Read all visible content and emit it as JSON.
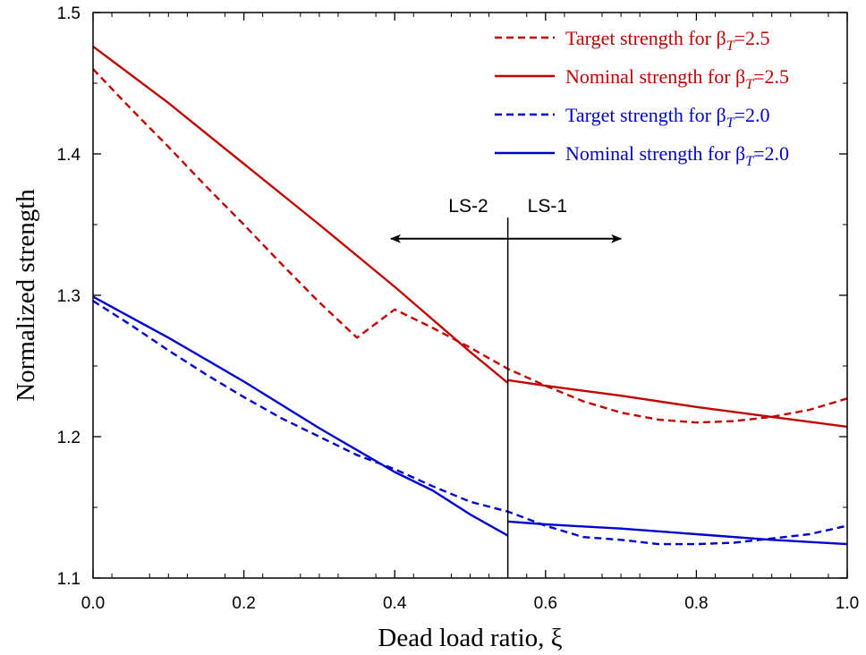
{
  "chart_data": {
    "type": "line",
    "title": "",
    "xlabel": "Dead load ratio, ξ",
    "ylabel": "Normalized strength",
    "xlim": [
      0.0,
      1.0
    ],
    "ylim": [
      1.1,
      1.5
    ],
    "x_ticks": [
      "0.0",
      "0.2",
      "0.4",
      "0.6",
      "0.8",
      "1.0"
    ],
    "y_ticks": [
      "1.1",
      "1.2",
      "1.3",
      "1.4",
      "1.5"
    ],
    "grid": false,
    "legend_position": "top-right",
    "series": [
      {
        "name": "Target strength for βT=2.5",
        "legend": {
          "pre": "Target strength for β",
          "sub": "T",
          "post": "=2.5"
        },
        "color": "#c00000",
        "style": "dashed",
        "points": [
          [
            0.0,
            1.46
          ],
          [
            0.05,
            1.432
          ],
          [
            0.1,
            1.405
          ],
          [
            0.15,
            1.377
          ],
          [
            0.2,
            1.35
          ],
          [
            0.25,
            1.322
          ],
          [
            0.3,
            1.295
          ],
          [
            0.35,
            1.27
          ],
          [
            0.4,
            1.29
          ],
          [
            0.45,
            1.277
          ],
          [
            0.5,
            1.263
          ],
          [
            0.55,
            1.248
          ],
          [
            0.6,
            1.236
          ],
          [
            0.65,
            1.225
          ],
          [
            0.7,
            1.217
          ],
          [
            0.75,
            1.212
          ],
          [
            0.8,
            1.21
          ],
          [
            0.85,
            1.211
          ],
          [
            0.9,
            1.214
          ],
          [
            0.95,
            1.219
          ],
          [
            1.0,
            1.227
          ]
        ]
      },
      {
        "name": "Nominal strength for βT=2.5",
        "legend": {
          "pre": "Nominal strength for β",
          "sub": "T",
          "post": "=2.5"
        },
        "color": "#c00000",
        "style": "solid",
        "segments": [
          [
            [
              0.0,
              1.476
            ],
            [
              0.1,
              1.436
            ],
            [
              0.2,
              1.393
            ],
            [
              0.3,
              1.35
            ],
            [
              0.4,
              1.306
            ],
            [
              0.45,
              1.283
            ],
            [
              0.5,
              1.26
            ],
            [
              0.55,
              1.238
            ]
          ],
          [
            [
              0.55,
              1.24
            ],
            [
              0.6,
              1.236
            ],
            [
              0.7,
              1.229
            ],
            [
              0.8,
              1.221
            ],
            [
              0.9,
              1.214
            ],
            [
              1.0,
              1.207
            ]
          ]
        ]
      },
      {
        "name": "Target strength for βT=2.0",
        "legend": {
          "pre": "Target strength for β",
          "sub": "T",
          "post": "=2.0"
        },
        "color": "#0000cc",
        "style": "dashed",
        "points": [
          [
            0.0,
            1.296
          ],
          [
            0.05,
            1.279
          ],
          [
            0.1,
            1.261
          ],
          [
            0.15,
            1.244
          ],
          [
            0.2,
            1.228
          ],
          [
            0.25,
            1.213
          ],
          [
            0.3,
            1.2
          ],
          [
            0.35,
            1.187
          ],
          [
            0.4,
            1.177
          ],
          [
            0.45,
            1.165
          ],
          [
            0.5,
            1.154
          ],
          [
            0.55,
            1.147
          ],
          [
            0.6,
            1.137
          ],
          [
            0.65,
            1.129
          ],
          [
            0.7,
            1.127
          ],
          [
            0.75,
            1.124
          ],
          [
            0.8,
            1.124
          ],
          [
            0.85,
            1.125
          ],
          [
            0.9,
            1.128
          ],
          [
            0.95,
            1.131
          ],
          [
            1.0,
            1.137
          ]
        ]
      },
      {
        "name": "Nominal strength for βT=2.0",
        "legend": {
          "pre": "Nominal strength for β",
          "sub": "T",
          "post": "=2.0"
        },
        "color": "#0000cc",
        "style": "solid",
        "segments": [
          [
            [
              0.0,
              1.299
            ],
            [
              0.1,
              1.27
            ],
            [
              0.2,
              1.239
            ],
            [
              0.3,
              1.206
            ],
            [
              0.4,
              1.175
            ],
            [
              0.45,
              1.162
            ],
            [
              0.5,
              1.145
            ],
            [
              0.55,
              1.13
            ]
          ],
          [
            [
              0.55,
              1.14
            ],
            [
              0.6,
              1.138
            ],
            [
              0.7,
              1.135
            ],
            [
              0.8,
              1.131
            ],
            [
              0.9,
              1.127
            ],
            [
              1.0,
              1.124
            ]
          ]
        ]
      }
    ],
    "annotations": {
      "divider_x": 0.55,
      "left_label": "LS-2",
      "right_label": "LS-1",
      "left_arrow": {
        "from": 0.55,
        "to": 0.395,
        "y": 1.34
      },
      "right_arrow": {
        "from": 0.55,
        "to": 0.7,
        "y": 1.34
      }
    }
  }
}
